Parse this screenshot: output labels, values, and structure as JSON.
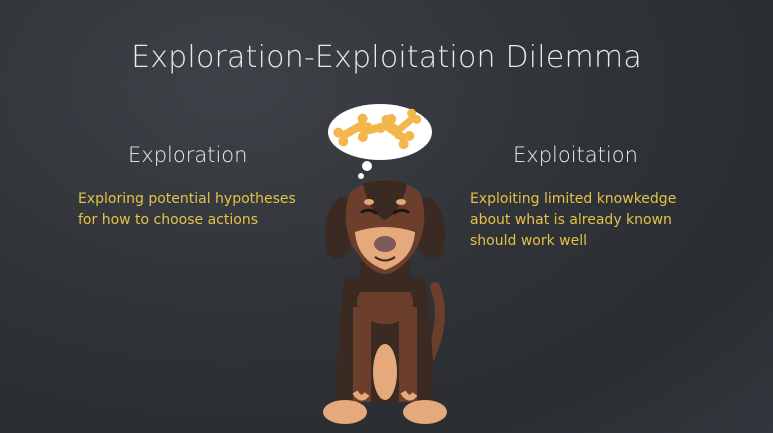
{
  "slide": {
    "title": "Exploration-Exploitation Dilemma",
    "left": {
      "heading": "Exploration",
      "description_lines": [
        "Exploring potential hypotheses",
        "for how to choose actions"
      ]
    },
    "right": {
      "heading": "Exploitation",
      "description_lines": [
        "Exploiting limited knowkedge",
        "about what is already known",
        "should work well"
      ]
    }
  },
  "illustration": {
    "subject": "dog-with-thought-bubble-of-bones",
    "colors": {
      "background": "#303338",
      "title_text": "#e9e9e9",
      "accent_text": "#e3c347",
      "dog_dark": "#3b2a22",
      "dog_brown": "#6b3f2c",
      "dog_tan": "#e5a97c",
      "bone": "#f2b64a"
    }
  }
}
